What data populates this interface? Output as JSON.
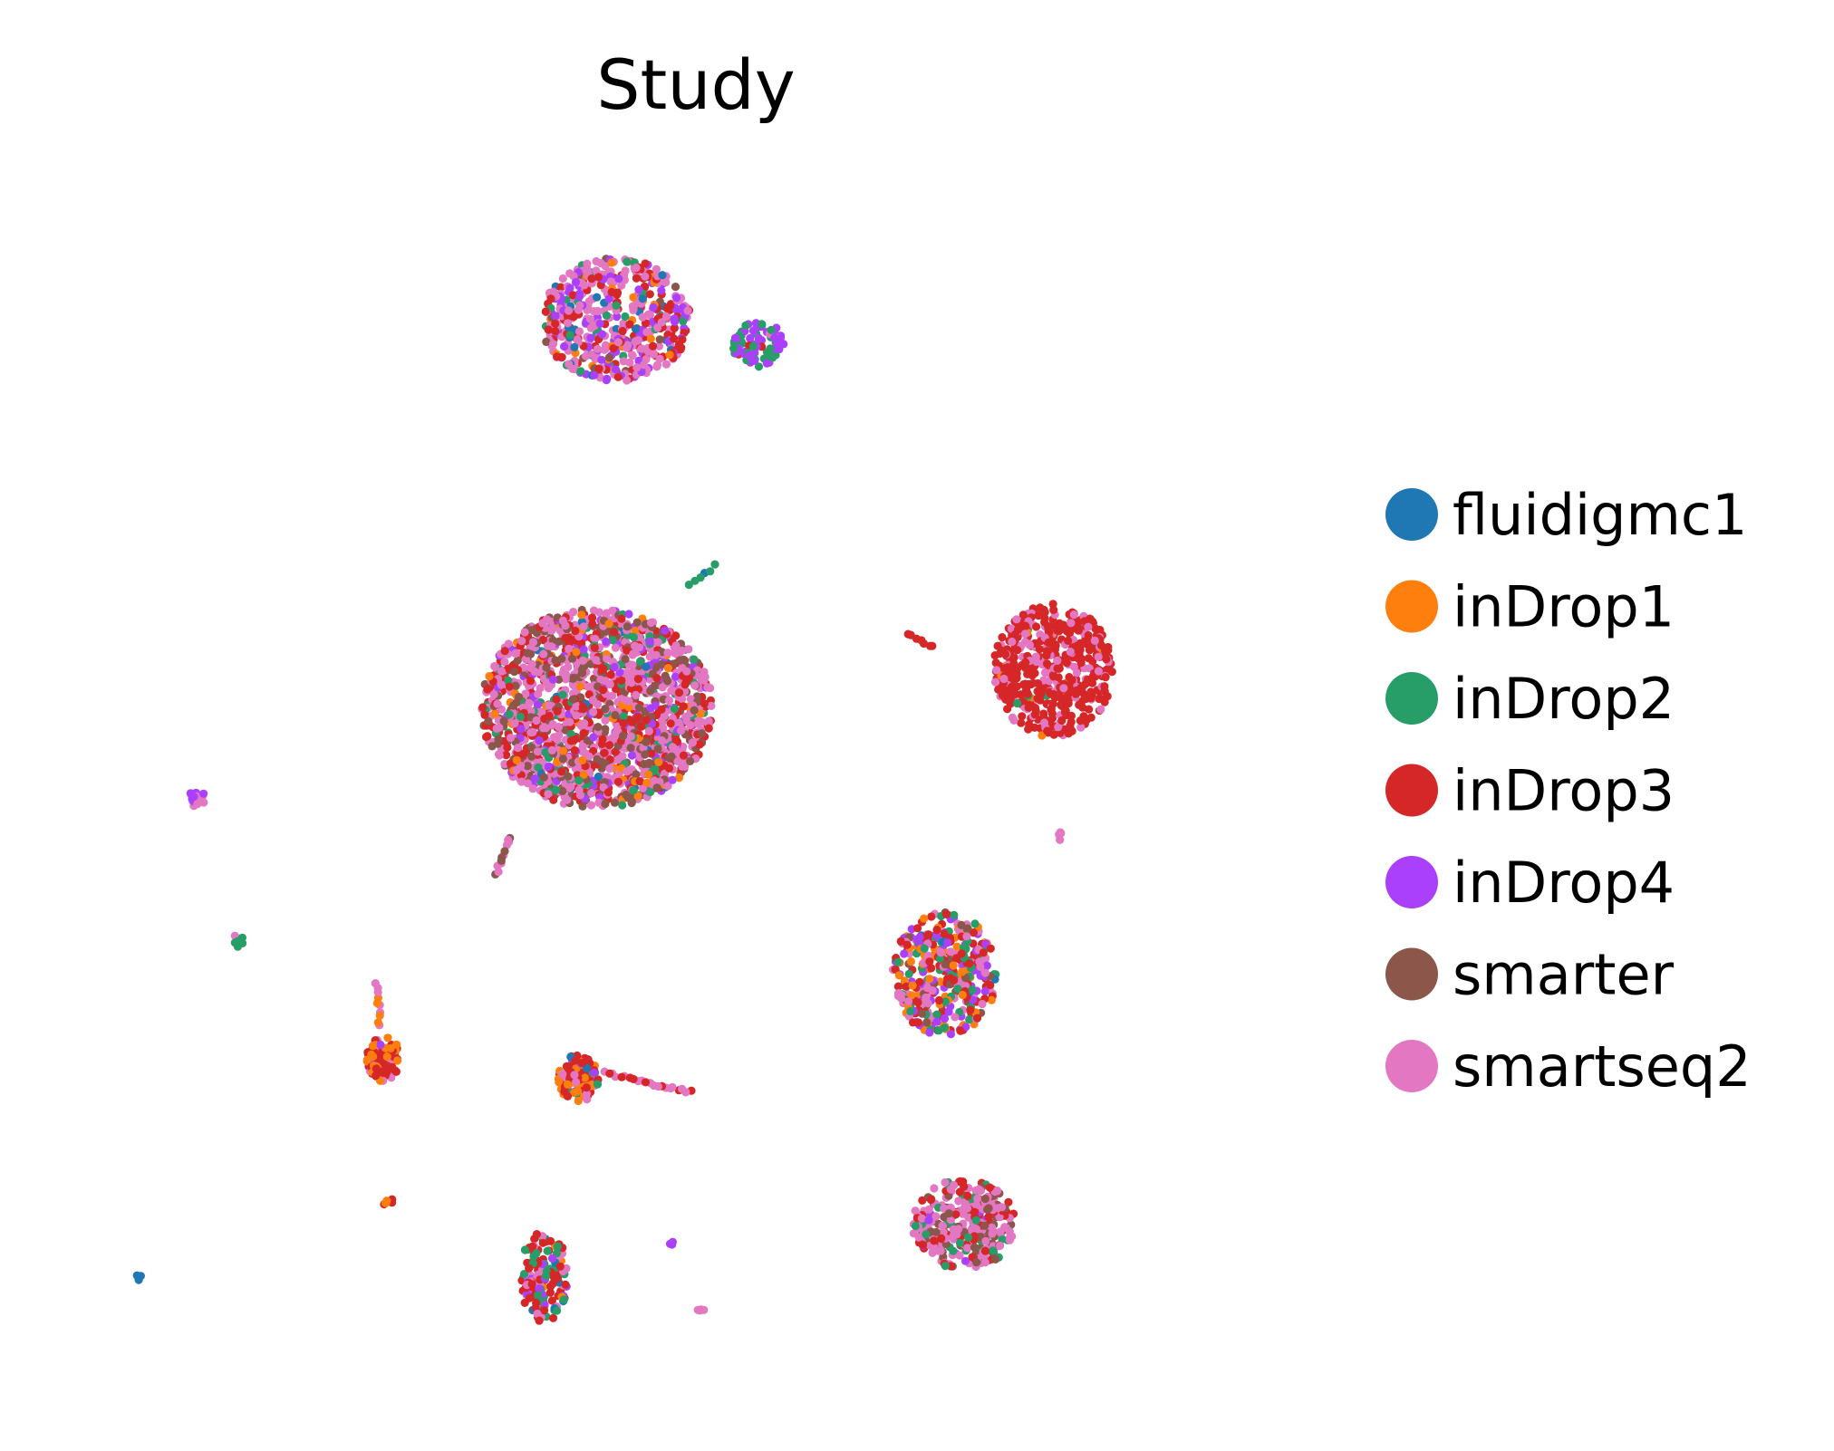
{
  "chart_data": {
    "type": "scatter",
    "title": "Study",
    "xlabel": "",
    "ylabel": "",
    "axes_visible": false,
    "grid": false,
    "legend_position": "right",
    "xlim": [
      -10,
      22
    ],
    "ylim": [
      -10,
      16
    ],
    "series": [
      {
        "name": "fluidigmc1",
        "color": "#1f77b4"
      },
      {
        "name": "inDrop1",
        "color": "#ff7f0e"
      },
      {
        "name": "inDrop2",
        "color": "#279e68"
      },
      {
        "name": "inDrop3",
        "color": "#d62728"
      },
      {
        "name": "inDrop4",
        "color": "#aa40fc"
      },
      {
        "name": "smarter",
        "color": "#8c564b"
      },
      {
        "name": "smartseq2",
        "color": "#e377c2"
      }
    ],
    "clusters": [
      {
        "center": [
          3.8,
          12.5
        ],
        "radius": [
          2.0,
          1.3
        ],
        "n": 520,
        "mix": {
          "fluidigmc1": 0.03,
          "inDrop1": 0.05,
          "inDrop2": 0.06,
          "inDrop3": 0.25,
          "inDrop4": 0.18,
          "smarter": 0.03,
          "smartseq2": 0.4
        }
      },
      {
        "center": [
          7.6,
          12.0
        ],
        "radius": [
          0.7,
          0.5
        ],
        "n": 80,
        "mix": {
          "inDrop2": 0.35,
          "inDrop4": 0.55,
          "inDrop3": 0.05,
          "smartseq2": 0.05
        }
      },
      {
        "center": [
          3.3,
          4.3
        ],
        "radius": [
          3.1,
          2.1
        ],
        "n": 1700,
        "mix": {
          "fluidigmc1": 0.01,
          "inDrop1": 0.04,
          "inDrop2": 0.05,
          "inDrop3": 0.22,
          "inDrop4": 0.07,
          "smarter": 0.2,
          "smartseq2": 0.41
        }
      },
      {
        "center": [
          15.5,
          5.1
        ],
        "radius": [
          1.6,
          1.4
        ],
        "n": 520,
        "mix": {
          "inDrop1": 0.03,
          "inDrop2": 0.02,
          "inDrop3": 0.7,
          "smartseq2": 0.25
        }
      },
      {
        "center": [
          12.6,
          -1.3
        ],
        "radius": [
          1.4,
          1.3
        ],
        "n": 380,
        "mix": {
          "fluidigmc1": 0.02,
          "inDrop1": 0.2,
          "inDrop2": 0.15,
          "inDrop3": 0.25,
          "inDrop4": 0.15,
          "smarter": 0.05,
          "smartseq2": 0.18
        }
      },
      {
        "center": [
          13.1,
          -6.6
        ],
        "radius": [
          1.4,
          0.95
        ],
        "n": 320,
        "mix": {
          "inDrop2": 0.08,
          "inDrop3": 0.15,
          "inDrop4": 0.05,
          "smarter": 0.22,
          "smartseq2": 0.5
        }
      },
      {
        "center": [
          2.8,
          -3.5
        ],
        "radius": [
          0.55,
          0.5
        ],
        "n": 110,
        "mix": {
          "fluidigmc1": 0.02,
          "inDrop1": 0.3,
          "inDrop2": 0.05,
          "inDrop3": 0.45,
          "inDrop4": 0.08,
          "smartseq2": 0.1
        }
      },
      {
        "center": [
          -2.4,
          -3.1
        ],
        "radius": [
          0.45,
          0.48
        ],
        "n": 90,
        "mix": {
          "inDrop1": 0.3,
          "inDrop3": 0.45,
          "inDrop4": 0.1,
          "smartseq2": 0.15
        }
      },
      {
        "center": [
          1.9,
          -7.7
        ],
        "radius": [
          0.65,
          0.95
        ],
        "n": 150,
        "mix": {
          "fluidigmc1": 0.03,
          "inDrop1": 0.05,
          "inDrop2": 0.15,
          "inDrop3": 0.45,
          "inDrop4": 0.12,
          "smartseq2": 0.2
        }
      },
      {
        "center": [
          -7.4,
          2.4
        ],
        "radius": [
          0.22,
          0.2
        ],
        "n": 14,
        "mix": {
          "inDrop4": 0.5,
          "smartseq2": 0.5
        }
      },
      {
        "center": [
          -6.3,
          -0.6
        ],
        "radius": [
          0.16,
          0.14
        ],
        "n": 8,
        "mix": {
          "inDrop2": 0.4,
          "inDrop1": 0.3,
          "smartseq2": 0.3
        }
      },
      {
        "center": [
          -2.3,
          -6.1
        ],
        "radius": [
          0.18,
          0.08
        ],
        "n": 7,
        "mix": {
          "inDrop1": 0.6,
          "inDrop3": 0.4
        }
      },
      {
        "center": [
          -9.0,
          -7.7
        ],
        "radius": [
          0.12,
          0.08
        ],
        "n": 4,
        "mix": {
          "fluidigmc1": 0.5,
          "smartseq2": 0.5
        }
      },
      {
        "center": [
          6.1,
          -8.4
        ],
        "radius": [
          0.12,
          0.08
        ],
        "n": 4,
        "mix": {
          "smartseq2": 1.0
        }
      },
      {
        "center": [
          5.3,
          -7.0
        ],
        "radius": [
          0.05,
          0.06
        ],
        "n": 3,
        "mix": {
          "inDrop4": 1.0
        }
      },
      {
        "center": [
          15.7,
          1.6
        ],
        "radius": [
          0.06,
          0.1
        ],
        "n": 4,
        "mix": {
          "smartseq2": 1.0
        }
      }
    ],
    "trails": [
      {
        "from": [
          3.5,
          -3.4
        ],
        "to": [
          5.8,
          -3.8
        ],
        "n": 22,
        "mix": {
          "smartseq2": 0.6,
          "inDrop3": 0.4
        }
      },
      {
        "from": [
          -2.5,
          -2.4
        ],
        "to": [
          -2.6,
          -1.5
        ],
        "n": 10,
        "mix": {
          "smartseq2": 0.6,
          "inDrop1": 0.4
        }
      },
      {
        "from": [
          0.6,
          0.8
        ],
        "to": [
          1.0,
          1.6
        ],
        "n": 12,
        "mix": {
          "smartseq2": 0.7,
          "smarter": 0.3
        }
      },
      {
        "from": [
          11.6,
          5.9
        ],
        "to": [
          12.3,
          5.6
        ],
        "n": 7,
        "mix": {
          "inDrop3": 1.0
        }
      },
      {
        "from": [
          5.8,
          6.9
        ],
        "to": [
          6.5,
          7.3
        ],
        "n": 6,
        "mix": {
          "inDrop2": 0.7,
          "fluidigmc1": 0.3
        }
      }
    ]
  }
}
